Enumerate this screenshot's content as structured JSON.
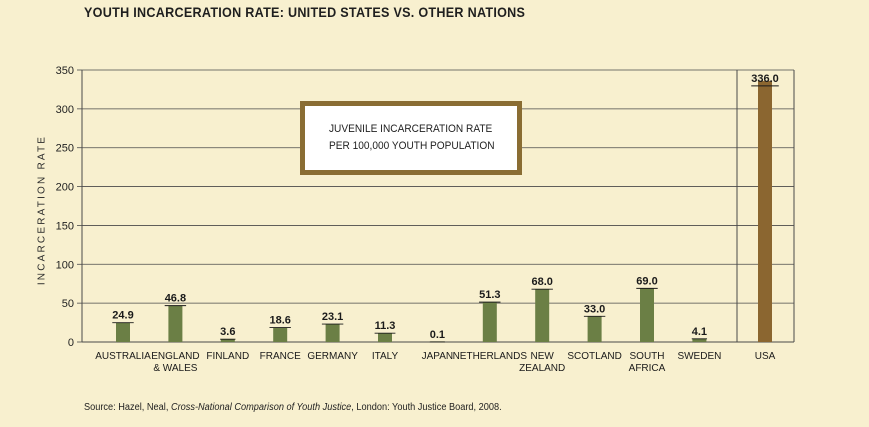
{
  "title": "YOUTH INCARCERATION RATE: UNITED STATES VS. OTHER NATIONS",
  "source": {
    "prefix": "Source: Hazel, Neal, ",
    "italic": "Cross-National Comparison of Youth Justice",
    "suffix": ", London: Youth Justice Board, 2008."
  },
  "legend_box": {
    "line1": "JUVENILE INCARCERATION RATE",
    "line2": "PER 100,000 YOUTH POPULATION"
  },
  "colors": {
    "background": "#f8f0cf",
    "bar_other": "#6b7f45",
    "bar_usa": "#8b6630",
    "grid": "#4a4a4a",
    "legend_border": "#8a6d33"
  },
  "chart_data": {
    "type": "bar",
    "title": "YOUTH INCARCERATION RATE: UNITED STATES VS. OTHER NATIONS",
    "ylabel": "INCARCERATION RATE",
    "xlabel": "",
    "ylim": [
      0,
      350
    ],
    "yticks": [
      "0",
      "50",
      "100",
      "150",
      "200",
      "250",
      "300",
      "350"
    ],
    "grid": true,
    "categories": [
      [
        "AUSTRALIA"
      ],
      [
        "ENGLAND",
        "& WALES"
      ],
      [
        "FINLAND"
      ],
      [
        "FRANCE"
      ],
      [
        "GERMANY"
      ],
      [
        "ITALY"
      ],
      [
        "JAPAN"
      ],
      [
        "NETHERLANDS"
      ],
      [
        "NEW",
        "ZEALAND"
      ],
      [
        "SCOTLAND"
      ],
      [
        "SOUTH",
        "AFRICA"
      ],
      [
        "SWEDEN"
      ],
      [
        "USA"
      ]
    ],
    "values": [
      24.9,
      46.8,
      3.6,
      18.6,
      23.1,
      11.3,
      0.1,
      51.3,
      68.0,
      33.0,
      69.0,
      4.1,
      336.0
    ],
    "value_labels": [
      "24.9",
      "46.8",
      "3.6",
      "18.6",
      "23.1",
      "11.3",
      "0.1",
      "51.3",
      "68.0",
      "33.0",
      "69.0",
      "4.1",
      "336.0"
    ],
    "highlight": "USA"
  }
}
